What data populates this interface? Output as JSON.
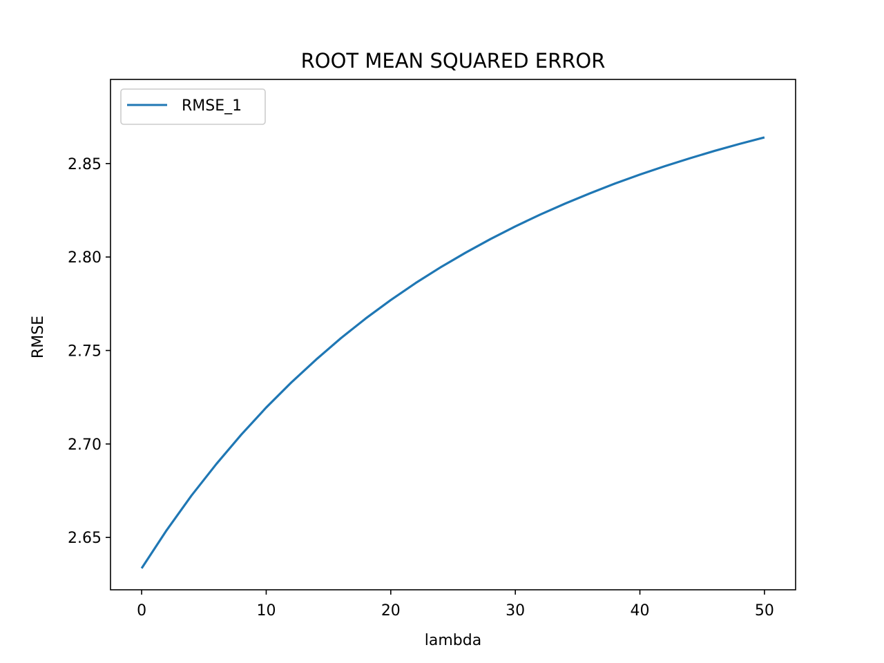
{
  "chart_data": {
    "type": "line",
    "title": "ROOT MEAN SQUARED ERROR",
    "xlabel": "lambda",
    "ylabel": "RMSE",
    "xlim": [
      -2.5,
      52.5
    ],
    "ylim": [
      2.622,
      2.895
    ],
    "xticks": [
      0,
      10,
      20,
      30,
      40,
      50
    ],
    "xtick_labels": [
      "0",
      "10",
      "20",
      "30",
      "40",
      "50"
    ],
    "yticks": [
      2.65,
      2.7,
      2.75,
      2.8,
      2.85
    ],
    "ytick_labels": [
      "2.65",
      "2.70",
      "2.75",
      "2.80",
      "2.85"
    ],
    "grid": false,
    "legend_position": "top-left",
    "series": [
      {
        "name": "RMSE_1",
        "color": "#1f77b4",
        "x": [
          0,
          2,
          4,
          6,
          8,
          10,
          12,
          14,
          16,
          18,
          20,
          22,
          24,
          26,
          28,
          30,
          32,
          34,
          36,
          38,
          40,
          42,
          44,
          46,
          48,
          50
        ],
        "y": [
          2.6335,
          2.6538,
          2.6724,
          2.6893,
          2.705,
          2.7195,
          2.7328,
          2.7451,
          2.7566,
          2.7672,
          2.777,
          2.7861,
          2.7945,
          2.8023,
          2.8096,
          2.8164,
          2.8227,
          2.8286,
          2.8341,
          2.8393,
          2.8441,
          2.8486,
          2.8528,
          2.8568,
          2.8605,
          2.864
        ]
      }
    ]
  }
}
